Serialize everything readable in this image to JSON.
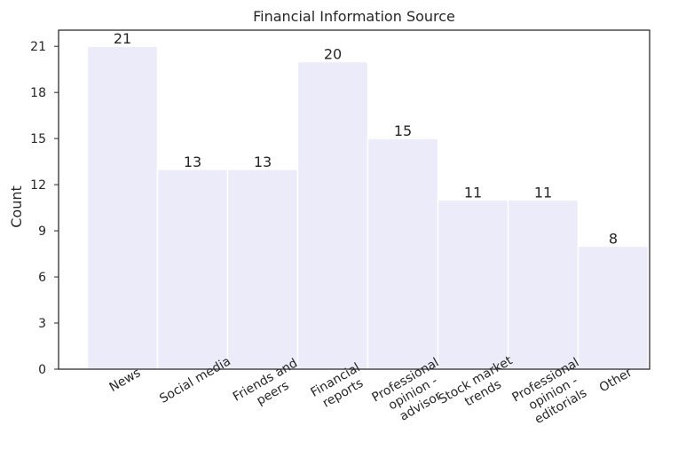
{
  "chart_data": {
    "type": "bar",
    "title": "Financial Information Source",
    "xlabel": "",
    "ylabel": "Count",
    "categories": [
      "News",
      "Social media",
      "Friends and peers",
      "Financial reports",
      "Professional opinion - advisor",
      "Stock market trends",
      "Professional opinion - editorials",
      "Other"
    ],
    "category_lines": [
      [
        "News"
      ],
      [
        "Social media"
      ],
      [
        "Friends and",
        "peers"
      ],
      [
        "Financial",
        "reports"
      ],
      [
        "Professional",
        "opinion -",
        "advisor"
      ],
      [
        "Stock market",
        "trends"
      ],
      [
        "Professional",
        "opinion -",
        "editorials"
      ],
      [
        "Other"
      ]
    ],
    "values": [
      21,
      13,
      13,
      20,
      15,
      11,
      11,
      8
    ],
    "ylim": [
      0,
      22.05
    ],
    "yticks": [
      0,
      3,
      6,
      9,
      12,
      15,
      18,
      21
    ],
    "grid": false,
    "legend": "none",
    "bar_color": "#ebebfa",
    "bar_edge_color": "#ffffff",
    "axis_color": "#262626",
    "text_color": "#262626"
  }
}
